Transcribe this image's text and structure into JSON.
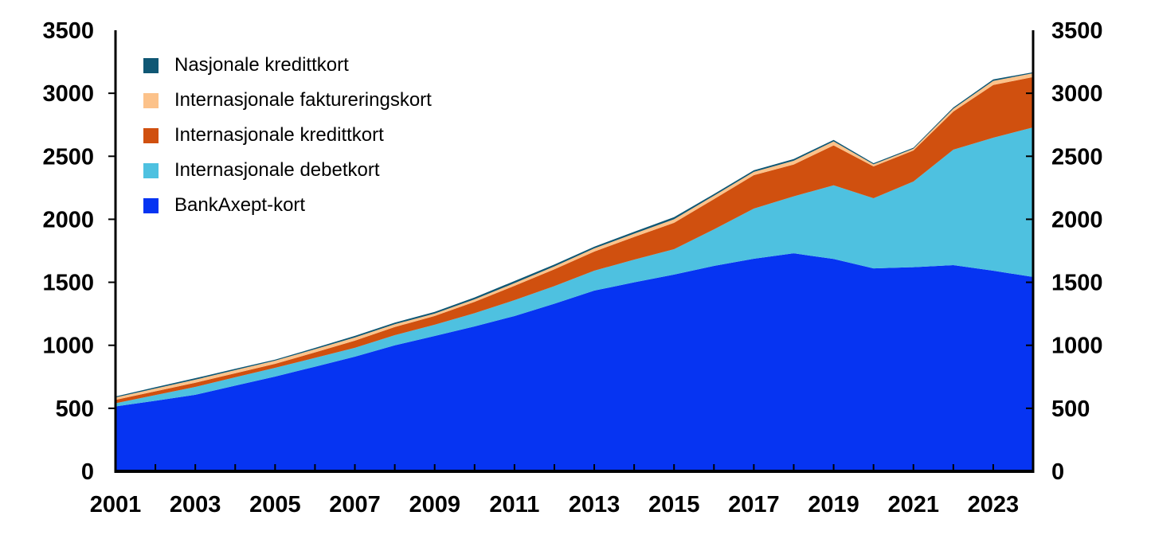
{
  "chart_data": {
    "type": "area",
    "stacked": true,
    "title": "",
    "xlabel": "",
    "ylabel": "",
    "x": [
      2001,
      2002,
      2003,
      2004,
      2005,
      2006,
      2007,
      2008,
      2009,
      2010,
      2011,
      2012,
      2013,
      2014,
      2015,
      2016,
      2017,
      2018,
      2019,
      2020,
      2021,
      2022,
      2023,
      2024
    ],
    "series": [
      {
        "label": "BankAxept-kort",
        "color": "#0634f2",
        "values": [
          515,
          560,
          607,
          680,
          752,
          830,
          910,
          1000,
          1074,
          1150,
          1232,
          1330,
          1434,
          1500,
          1561,
          1630,
          1687,
          1730,
          1685,
          1610,
          1620,
          1636,
          1592,
          1542
        ]
      },
      {
        "label": "Internasjonale debetkort",
        "color": "#4ec1e0",
        "values": [
          25,
          45,
          63,
          66,
          69,
          70,
          70,
          80,
          89,
          105,
          126,
          140,
          158,
          180,
          202,
          290,
          398,
          452,
          585,
          557,
          680,
          916,
          1055,
          1187
        ]
      },
      {
        "label": "Internasjonale kredittkort",
        "color": "#d0500f",
        "values": [
          27,
          30,
          33,
          32,
          32,
          44,
          57,
          65,
          70,
          90,
          114,
          133,
          152,
          180,
          209,
          240,
          265,
          253,
          316,
          253,
          246,
          303,
          419,
          400
        ]
      },
      {
        "label": "Internasjonale faktureringskort",
        "color": "#fcc28a",
        "values": [
          19,
          22,
          24,
          25,
          25,
          25,
          25,
          22,
          19,
          20,
          21,
          23,
          25,
          26,
          28,
          27,
          26,
          30,
          32,
          16,
          14,
          22,
          32,
          30
        ]
      },
      {
        "label": "Nasjonale kredittkort",
        "color": "#0f5774",
        "values": [
          8,
          10,
          12,
          10,
          8,
          10,
          13,
          13,
          13,
          15,
          17,
          15,
          13,
          15,
          17,
          13,
          13,
          13,
          12,
          9,
          8,
          10,
          12,
          8
        ]
      }
    ],
    "legend_position": "top-left",
    "xlim": [
      2001,
      2024
    ],
    "ylim": [
      0,
      3500
    ],
    "y_ticks": [
      0,
      500,
      1000,
      1500,
      2000,
      2500,
      3000,
      3500
    ],
    "y_tick_labels": [
      "0",
      "500",
      "1000",
      "1500",
      "2000",
      "2500",
      "3000",
      "3500"
    ],
    "x_tick_label_years": [
      2001,
      2003,
      2005,
      2007,
      2009,
      2011,
      2013,
      2015,
      2017,
      2019,
      2021,
      2023
    ],
    "x_tick_labels": [
      "2001",
      "2003",
      "2005",
      "2007",
      "2009",
      "2011",
      "2013",
      "2015",
      "2017",
      "2019",
      "2021",
      "2023"
    ],
    "grid": false,
    "axis_color": "#000000",
    "background_color": "#ffffff"
  }
}
